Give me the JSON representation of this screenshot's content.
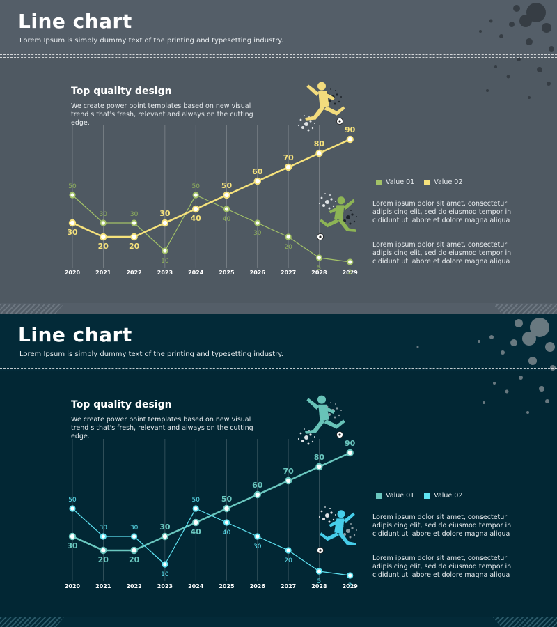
{
  "slides": [
    {
      "header": {
        "title": "Line chart",
        "subtitle": "Lorem Ipsum is simply dummy text of the printing and typesetting industry."
      },
      "section": {
        "title": "Top quality design",
        "description": "We create power point templates based on new visual trend s that's fresh, relevant and always on the cutting edge."
      },
      "paragraphs": [
        "Lorem ipsum dolor sit amet, consectetur adipisicing elit, sed do eiusmod tempor in cididunt ut labore et dolore magna aliqua",
        "Lorem ipsum dolor sit amet, consectetur adipisicing elit, sed do eiusmod tempor in cididunt ut labore et dolore magna aliqua"
      ],
      "colors": {
        "series1": "#a3c267",
        "series2": "#f6e27c",
        "label1": "#8fb05c",
        "label2": "#f6e27c",
        "player_top": "#f3dc7d",
        "player_bottom": "#8db455",
        "ink": "#1e252b",
        "grid": "rgba(255,255,255,0.35)"
      }
    },
    {
      "header": {
        "title": "Line chart",
        "subtitle": "Lorem Ipsum is simply dummy text of the printing and typesetting industry."
      },
      "section": {
        "title": "Top quality design",
        "description": "We create power point templates based on new visual trend s that's fresh, relevant and always on the cutting edge."
      },
      "paragraphs": [
        "Lorem ipsum dolor sit amet, consectetur adipisicing elit, sed do eiusmod tempor in cididunt ut labore et dolore magna aliqua",
        "Lorem ipsum dolor sit amet, consectetur adipisicing elit, sed do eiusmod tempor in cididunt ut labore et dolore magna aliqua"
      ],
      "colors": {
        "series1": "#6ac7bf",
        "series2": "#5ee3f2",
        "label1": "#6ac7bf",
        "label2": "#5ee3f2",
        "player_top": "#68c3b8",
        "player_bottom": "#46cde9",
        "ink": "#8a9aa1",
        "grid": "rgba(255,255,255,0.3)"
      }
    }
  ],
  "chart_data": [
    {
      "type": "line",
      "x": [
        "2020",
        "2021",
        "2022",
        "2023",
        "2024",
        "2025",
        "2026",
        "2027",
        "2028",
        "2029"
      ],
      "series": [
        {
          "name": "Value 01",
          "values": [
            50,
            30,
            30,
            10,
            50,
            40,
            30,
            20,
            5,
            2
          ]
        },
        {
          "name": "Value 02",
          "values": [
            30,
            20,
            20,
            30,
            40,
            50,
            60,
            70,
            80,
            90
          ]
        }
      ],
      "grid": "vertical",
      "legend": "right"
    },
    {
      "type": "line",
      "x": [
        "2020",
        "2021",
        "2022",
        "2023",
        "2024",
        "2025",
        "2026",
        "2027",
        "2028",
        "2029"
      ],
      "series": [
        {
          "name": "Value 01",
          "values": [
            30,
            20,
            20,
            30,
            40,
            50,
            60,
            70,
            80,
            90
          ]
        },
        {
          "name": "Value 02",
          "values": [
            50,
            30,
            30,
            10,
            50,
            40,
            30,
            20,
            5,
            2
          ]
        }
      ],
      "grid": "vertical",
      "legend": "right"
    }
  ]
}
